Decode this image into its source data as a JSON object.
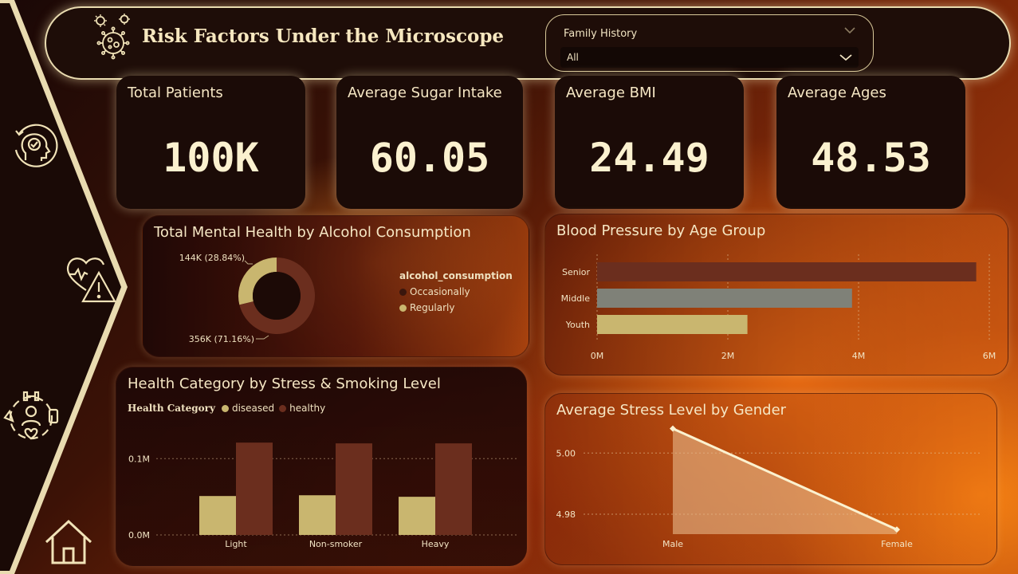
{
  "header": {
    "title": "Risk Factors Under the Microscope",
    "logo_icon": "virus-icon",
    "slicer": {
      "label": "Family History",
      "value": "All"
    }
  },
  "sidebar": {
    "icons": [
      "mental-health-icon",
      "heart-warning-icon",
      "fitness-wellbeing-icon",
      "home-icon"
    ]
  },
  "kpis": [
    {
      "title": "Total Patients",
      "value": "100K"
    },
    {
      "title": "Average Sugar Intake",
      "value": "60.05"
    },
    {
      "title": "Average BMI",
      "value": "24.49"
    },
    {
      "title": "Average Ages",
      "value": "48.53"
    }
  ],
  "colors": {
    "accent": "#f4e7c0",
    "tan": "#c9b66f",
    "brown": "#6b2e1e",
    "gray": "#7f8178",
    "dark_card": "#1b0b07"
  },
  "chart_data": [
    {
      "type": "pie",
      "title": "Total Mental Health by Alcohol Consumption",
      "legend_title": "alcohol_consumption",
      "legend_position": "right",
      "slices": [
        {
          "name": "Occasionally",
          "value": 356000,
          "label": "356K (71.16%)",
          "color": "#6b2e1e"
        },
        {
          "name": "Regularly",
          "value": 144000,
          "label": "144K (28.84%)",
          "color": "#c9b66f"
        }
      ]
    },
    {
      "type": "bar",
      "orientation": "horizontal",
      "title": "Blood Pressure by Age Group",
      "categories": [
        "Senior",
        "Middle",
        "Youth"
      ],
      "values": [
        5.8,
        3.9,
        2.3
      ],
      "colors": [
        "#6b2e1e",
        "#7f8178",
        "#c9b66f"
      ],
      "xlim": [
        0,
        6
      ],
      "xticks": [
        "0M",
        "2M",
        "4M",
        "6M"
      ]
    },
    {
      "type": "bar",
      "title": "Health Category by Stress & Smoking Level",
      "legend_title": "Health Category",
      "legend_position": "top-left",
      "categories": [
        "Light",
        "Non-smoker",
        "Heavy"
      ],
      "series": [
        {
          "name": "diseased",
          "values": [
            0.051,
            0.052,
            0.05
          ],
          "color": "#c9b66f"
        },
        {
          "name": "healthy",
          "values": [
            0.121,
            0.12,
            0.12
          ],
          "color": "#6b2e1e"
        }
      ],
      "ylim": [
        0,
        0.14
      ],
      "yticks": [
        {
          "value": 0,
          "label": "0.0M"
        },
        {
          "value": 0.1,
          "label": "0.1M"
        }
      ]
    },
    {
      "type": "area",
      "title": "Average Stress Level by Gender",
      "categories": [
        "Male",
        "Female"
      ],
      "values": [
        5.008,
        4.975
      ],
      "ylim": [
        4.9735,
        5.0105
      ],
      "yticks": [
        {
          "value": 5.0,
          "label": "5.00"
        },
        {
          "value": 4.98,
          "label": "4.98"
        }
      ]
    }
  ]
}
